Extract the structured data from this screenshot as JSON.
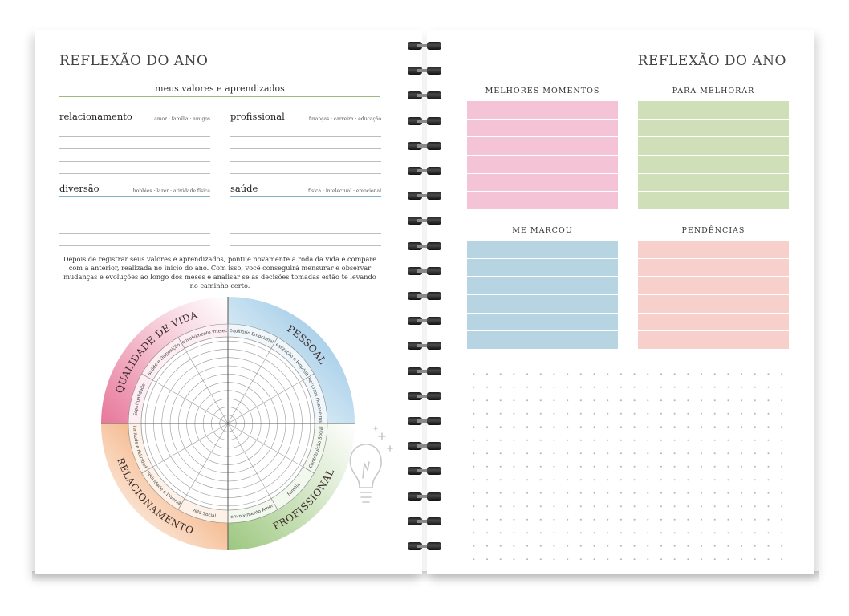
{
  "left": {
    "title": "REFLEXÃO DO ANO",
    "valores_heading": "meus valores e aprendizados",
    "categories": [
      {
        "name": "relacionamento",
        "sub": "amor · família · amigos",
        "color": "#e8849e"
      },
      {
        "name": "profissional",
        "sub": "finanças · carreira · educação",
        "color": "#e8849e"
      },
      {
        "name": "diversão",
        "sub": "hobbies · lazer · atividade física",
        "color": "#7fb3cc"
      },
      {
        "name": "saúde",
        "sub": "física · intelectual · emocional",
        "color": "#7fb3cc"
      }
    ],
    "paragraph": "Depois de registrar seus valores e aprendizados, pontue novamente a roda da vida e compare com a anterior, realizada no início do ano. Com isso, você conseguirá mensurar e observar mudanças e evoluções ao longo dos meses e analisar se as decisões tomadas estão te levando no caminho certo.",
    "wheel": {
      "quadrants": [
        {
          "label": "QUALIDADE DE VIDA",
          "color": "#e7779a"
        },
        {
          "label": "PESSOAL",
          "color": "#86bde0"
        },
        {
          "label": "PROFISSIONAL",
          "color": "#9cc77f"
        },
        {
          "label": "RELACIONAMENTO",
          "color": "#ee8c45"
        }
      ],
      "segments": [
        "Espiritualidade",
        "Saúde e Disposição",
        "Desenvolvimento Intelectual",
        "Equilíbrio Emocional",
        "Realização e Propósito",
        "Recursos Financeiros",
        "Contribuição Social",
        "Família",
        "Desenvolvimento Amoroso",
        "Vida Social",
        "Criatividade e Diversão",
        "Plenitude e Felicidade"
      ]
    }
  },
  "right": {
    "title": "REFLEXÃO DO ANO",
    "blocks": [
      {
        "label": "MELHORES MOMENTOS",
        "color": "#f5c3d6"
      },
      {
        "label": "PARA MELHORAR",
        "color": "#cfdfb8"
      },
      {
        "label": "ME MARCOU",
        "color": "#b7d4e3"
      },
      {
        "label": "PENDÊNCIAS",
        "color": "#f7cfcb"
      }
    ]
  },
  "icons": {
    "bulb": "lightbulb-icon",
    "spiral": "spiral-binding"
  }
}
